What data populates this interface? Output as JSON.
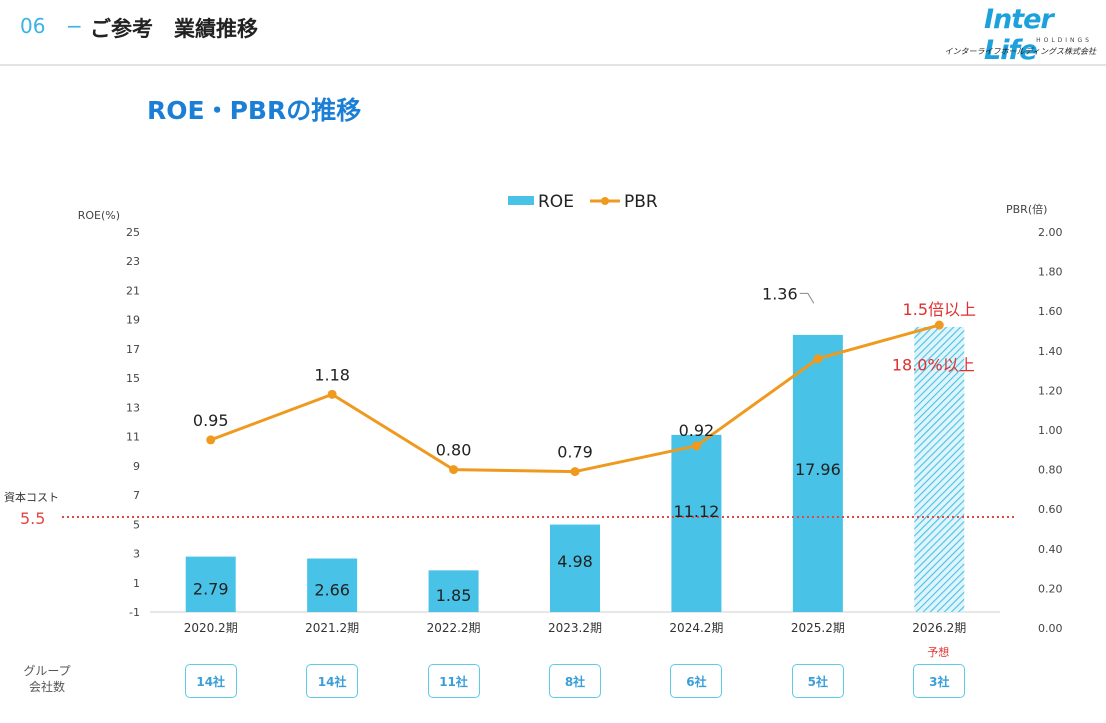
{
  "header": {
    "section_number": "06",
    "section_dash": "−",
    "section_title": "ご参考　業績推移",
    "logo_text": "Inter Life",
    "logo_sub": "HOLDINGS",
    "logo_jp": "インターライフホールディングス株式会社"
  },
  "chart_data": {
    "type": "bar+line",
    "title": "ROE・PBRの推移",
    "categories": [
      "2020.2期",
      "2021.2期",
      "2022.2期",
      "2023.2期",
      "2024.2期",
      "2025.2期",
      "2026.2期"
    ],
    "legend": [
      "ROE",
      "PBR"
    ],
    "series": [
      {
        "name": "ROE",
        "type": "bar",
        "axis": "left",
        "values": [
          2.79,
          2.66,
          1.85,
          4.98,
          11.12,
          17.96,
          18.5
        ],
        "labels": [
          "2.79",
          "2.66",
          "1.85",
          "4.98",
          "11.12",
          "17.96",
          ""
        ],
        "forecast_index": 6,
        "color": "#48c2e6"
      },
      {
        "name": "PBR",
        "type": "line",
        "axis": "right",
        "values": [
          0.95,
          1.18,
          0.8,
          0.79,
          0.92,
          1.36,
          1.53
        ],
        "labels": [
          "0.95",
          "1.18",
          "0.80",
          "0.79",
          "0.92",
          "1.36",
          ""
        ],
        "color": "#ef9a1e"
      }
    ],
    "y_left": {
      "label": "ROE(%)",
      "range": [
        -1,
        25
      ],
      "ticks": [
        "-1",
        "1",
        "3",
        "5",
        "7",
        "9",
        "11",
        "13",
        "15",
        "17",
        "19",
        "21",
        "23",
        "25"
      ]
    },
    "y_right": {
      "label": "PBR(倍)",
      "range": [
        0,
        2
      ],
      "ticks": [
        "0.00",
        "0.20",
        "0.40",
        "0.60",
        "0.80",
        "1.00",
        "1.20",
        "1.40",
        "1.60",
        "1.80",
        "2.00"
      ]
    },
    "reference_line": {
      "label": "資本コスト",
      "value": 5.5,
      "value_label": "5.5",
      "color": "#e44545"
    },
    "annotations": {
      "pbr_target": "1.5倍以上",
      "roe_target": "18.0%以上"
    },
    "forecast_label": "予想"
  },
  "groups": {
    "label_line1": "グループ",
    "label_line2": "会社数",
    "counts": [
      "14社",
      "14社",
      "11社",
      "8社",
      "6社",
      "5社",
      "3社"
    ]
  }
}
